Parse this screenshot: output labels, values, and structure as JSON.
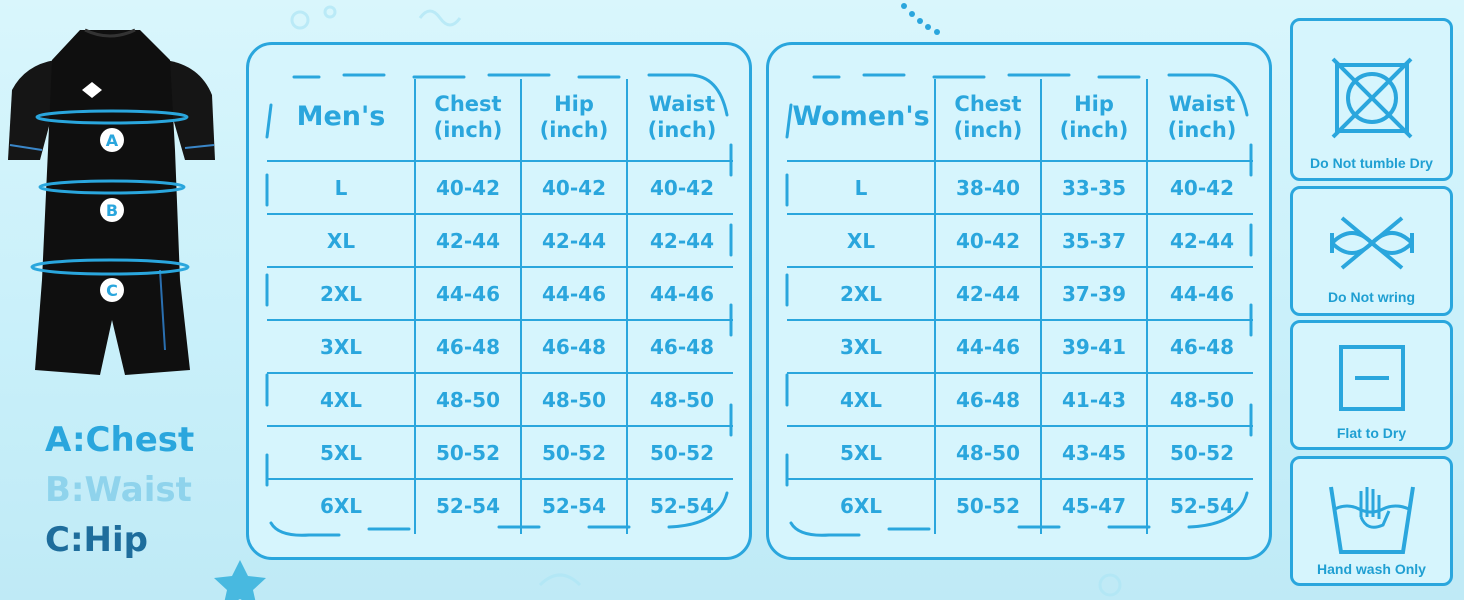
{
  "colors": {
    "accent": "#2aa6dd",
    "background": "#d0f3fb",
    "garment": "#111111"
  },
  "figure": {
    "markers": [
      "A",
      "B",
      "C"
    ]
  },
  "legend": [
    {
      "text": "A:Chest",
      "color": "#2aa6dd"
    },
    {
      "text": "B:Waist",
      "color": "#8fd3ec"
    },
    {
      "text": "C:Hip",
      "color": "#1e6d9c"
    }
  ],
  "men": {
    "title": "Men's",
    "headers": [
      {
        "l1": "Chest",
        "l2": "(inch)"
      },
      {
        "l1": "Hip",
        "l2": "(inch)"
      },
      {
        "l1": "Waist",
        "l2": "(inch)"
      }
    ],
    "rows": [
      [
        "L",
        "40-42",
        "40-42",
        "40-42"
      ],
      [
        "XL",
        "42-44",
        "42-44",
        "42-44"
      ],
      [
        "2XL",
        "44-46",
        "44-46",
        "44-46"
      ],
      [
        "3XL",
        "46-48",
        "46-48",
        "46-48"
      ],
      [
        "4XL",
        "48-50",
        "48-50",
        "48-50"
      ],
      [
        "5XL",
        "50-52",
        "50-52",
        "50-52"
      ],
      [
        "6XL",
        "52-54",
        "52-54",
        "52-54"
      ]
    ]
  },
  "women": {
    "title": "Women's",
    "headers": [
      {
        "l1": "Chest",
        "l2": "(inch)"
      },
      {
        "l1": "Hip",
        "l2": "(inch)"
      },
      {
        "l1": "Waist",
        "l2": "(inch)"
      }
    ],
    "rows": [
      [
        "L",
        "38-40",
        "33-35",
        "40-42"
      ],
      [
        "XL",
        "40-42",
        "35-37",
        "42-44"
      ],
      [
        "2XL",
        "42-44",
        "37-39",
        "44-46"
      ],
      [
        "3XL",
        "44-46",
        "39-41",
        "46-48"
      ],
      [
        "4XL",
        "46-48",
        "41-43",
        "48-50"
      ],
      [
        "5XL",
        "48-50",
        "43-45",
        "50-52"
      ],
      [
        "6XL",
        "50-52",
        "45-47",
        "52-54"
      ]
    ]
  },
  "care": [
    {
      "icon": "no-tumble-dry-icon",
      "label": "Do Not tumble Dry"
    },
    {
      "icon": "no-wring-icon",
      "label": "Do Not wring"
    },
    {
      "icon": "flat-dry-icon",
      "label": "Flat to Dry"
    },
    {
      "icon": "hand-wash-icon",
      "label": "Hand wash Only"
    }
  ]
}
